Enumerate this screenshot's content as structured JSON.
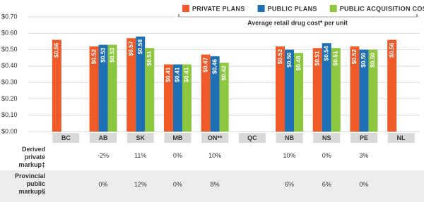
{
  "chart_data": {
    "type": "bar",
    "annotation": "Average retail drug cost* per unit",
    "categories": [
      "BC",
      "AB",
      "SK",
      "MB",
      "ON**",
      "QC",
      "NB",
      "NS",
      "PE",
      "NL"
    ],
    "series": [
      {
        "name": "PRIVATE PLANS",
        "color": "#f05a28",
        "values": [
          0.56,
          0.52,
          0.57,
          0.41,
          0.47,
          null,
          0.52,
          0.51,
          0.52,
          0.56
        ],
        "value_labels": [
          "$0.56",
          "$0.52",
          "$0.57",
          "$0.41",
          "$0.47",
          null,
          "$0.52",
          "$0.51",
          "$0.52",
          "$0.56"
        ]
      },
      {
        "name": "PUBLIC PLANS",
        "color": "#1f6fb5",
        "values": [
          null,
          0.53,
          0.58,
          0.41,
          0.46,
          null,
          0.5,
          0.54,
          0.5,
          null
        ],
        "value_labels": [
          null,
          "$0.53",
          "$0.58",
          "$0.41",
          "$0.46",
          null,
          "$0.50",
          "$0.54",
          "$0.50",
          null
        ]
      },
      {
        "name": "PUBLIC ACQUISITION COST†",
        "color": "#8dc63f",
        "values": [
          null,
          0.53,
          0.51,
          0.41,
          0.42,
          null,
          0.48,
          0.51,
          0.5,
          null
        ],
        "value_labels": [
          null,
          "$0.53",
          "$0.51",
          "$0.41",
          "$0.42",
          null,
          "$0.48",
          "$0.51",
          "$0.50",
          null
        ]
      }
    ],
    "ylim": [
      0,
      0.7
    ],
    "yticks": [
      {
        "value": 0,
        "label": "$0.00"
      },
      {
        "value": 0.1,
        "label": "$0.10"
      },
      {
        "value": 0.2,
        "label": "$0.20"
      },
      {
        "value": 0.3,
        "label": "$0.30"
      },
      {
        "value": 0.4,
        "label": "$0.40"
      },
      {
        "value": 0.5,
        "label": "$0.50"
      },
      {
        "value": 0.6,
        "label": "$0.60"
      },
      {
        "value": 0.7,
        "label": "$0.70"
      }
    ],
    "grid": true
  },
  "table": {
    "rows": [
      {
        "label": "Derived private markup‡",
        "cells": [
          null,
          "-2%",
          "11%",
          "0%",
          "10%",
          null,
          "10%",
          "0%",
          "3%",
          null
        ]
      },
      {
        "label": "Provincial public markup§",
        "cells": [
          null,
          "0%",
          "12%",
          "0%",
          "8%",
          null,
          "6%",
          "6%",
          "0%",
          null
        ]
      }
    ]
  }
}
